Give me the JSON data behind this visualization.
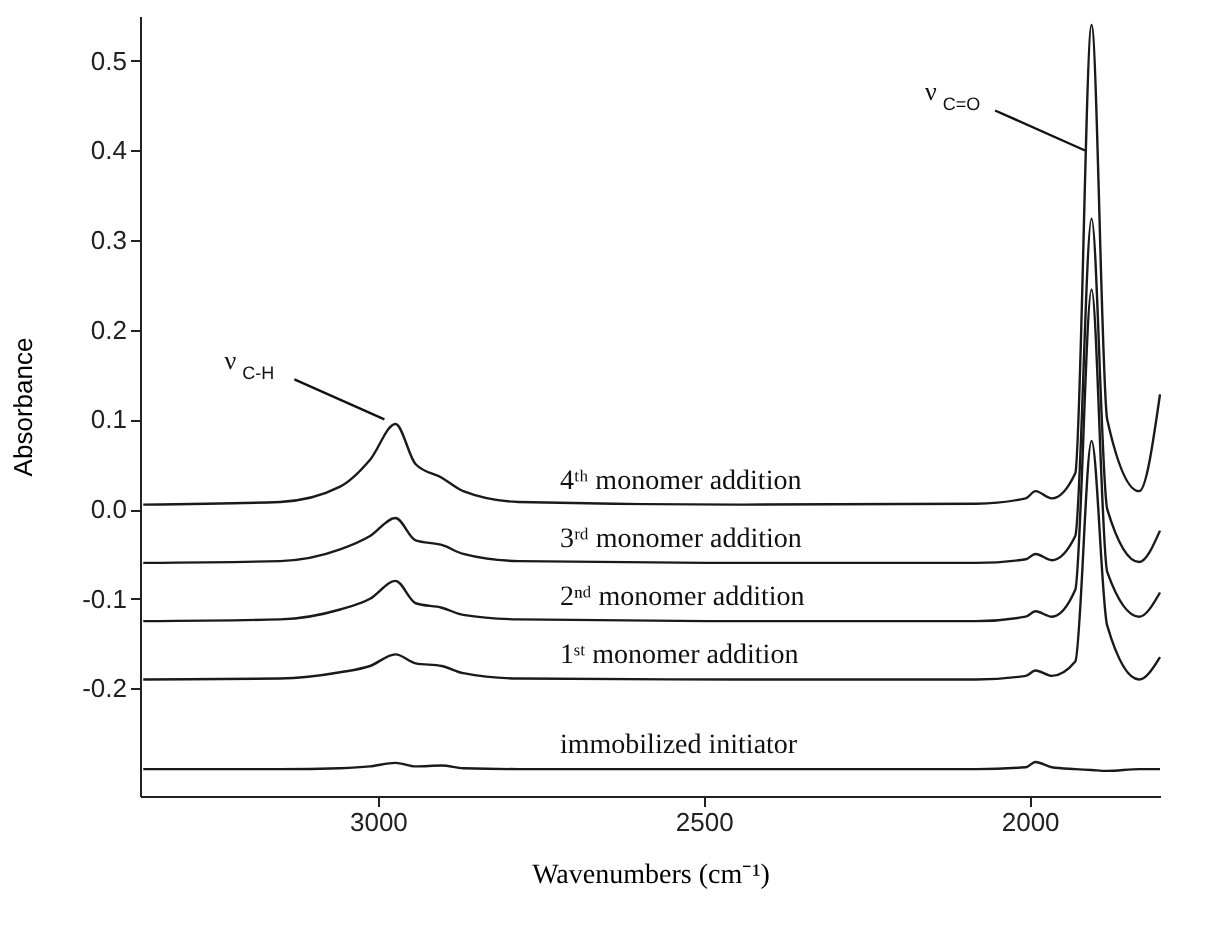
{
  "chart_data": {
    "type": "line",
    "xlabel": "Wavenumbers (cm⁻¹)",
    "ylabel": "Absorbance",
    "x": [
      3360,
      3150,
      3058,
      3012,
      2973,
      2942,
      2902,
      2869,
      2784,
      2448,
      2082,
      2006,
      1991,
      1966,
      1930,
      1905,
      1881,
      1832,
      1800
    ],
    "series": [
      {
        "name": "4ᵗʰ monomer addition",
        "color": "#1a1a1a",
        "values": [
          0.005,
          0.008,
          0.025,
          0.055,
          0.095,
          0.05,
          0.035,
          0.02,
          0.008,
          0.005,
          0.006,
          0.012,
          0.02,
          0.012,
          0.04,
          0.54,
          0.1,
          0.02,
          0.128
        ]
      },
      {
        "name": "3ʳᵈ monomer addition",
        "color": "#1a1a1a",
        "values": [
          -0.06,
          -0.058,
          -0.045,
          -0.03,
          -0.01,
          -0.035,
          -0.04,
          -0.05,
          -0.058,
          -0.06,
          -0.06,
          -0.056,
          -0.05,
          -0.057,
          -0.03,
          0.324,
          0.0,
          -0.059,
          -0.024
        ]
      },
      {
        "name": "2ⁿᵈ monomer addition",
        "color": "#1a1a1a",
        "values": [
          -0.125,
          -0.123,
          -0.112,
          -0.1,
          -0.08,
          -0.105,
          -0.11,
          -0.118,
          -0.123,
          -0.125,
          -0.125,
          -0.12,
          -0.114,
          -0.12,
          -0.09,
          0.245,
          -0.07,
          -0.12,
          -0.093
        ]
      },
      {
        "name": "1ˢᵗ monomer addition",
        "color": "#1a1a1a",
        "values": [
          -0.19,
          -0.189,
          -0.182,
          -0.175,
          -0.162,
          -0.172,
          -0.175,
          -0.183,
          -0.189,
          -0.19,
          -0.19,
          -0.186,
          -0.18,
          -0.186,
          -0.17,
          0.076,
          -0.13,
          -0.19,
          -0.165
        ]
      },
      {
        "name": "immobilized initiator",
        "color": "#1a1a1a",
        "values": [
          -0.29,
          -0.29,
          -0.289,
          -0.287,
          -0.283,
          -0.287,
          -0.286,
          -0.289,
          -0.29,
          -0.29,
          -0.29,
          -0.288,
          -0.282,
          -0.288,
          -0.29,
          -0.291,
          -0.292,
          -0.29,
          -0.29
        ]
      }
    ],
    "xlim": [
      3365,
      1800
    ],
    "xticks": [
      {
        "value": 3000,
        "label": "3000"
      },
      {
        "value": 2500,
        "label": "2500"
      },
      {
        "value": 2000,
        "label": "2000"
      }
    ],
    "ylim": [
      -0.32,
      0.55
    ],
    "yticks": [
      -0.2,
      -0.1,
      {
        "value": 0,
        "label": "0.0"
      },
      0.1,
      0.2,
      0.3,
      0.4,
      0.5
    ],
    "line_style": "solid",
    "annotations": [
      {
        "text": "ν$_{C-H}$",
        "x": 2990,
        "y": 0.1
      },
      {
        "text": "ν$_{C=O}$",
        "x": 1915,
        "y": 0.4
      }
    ]
  }
}
